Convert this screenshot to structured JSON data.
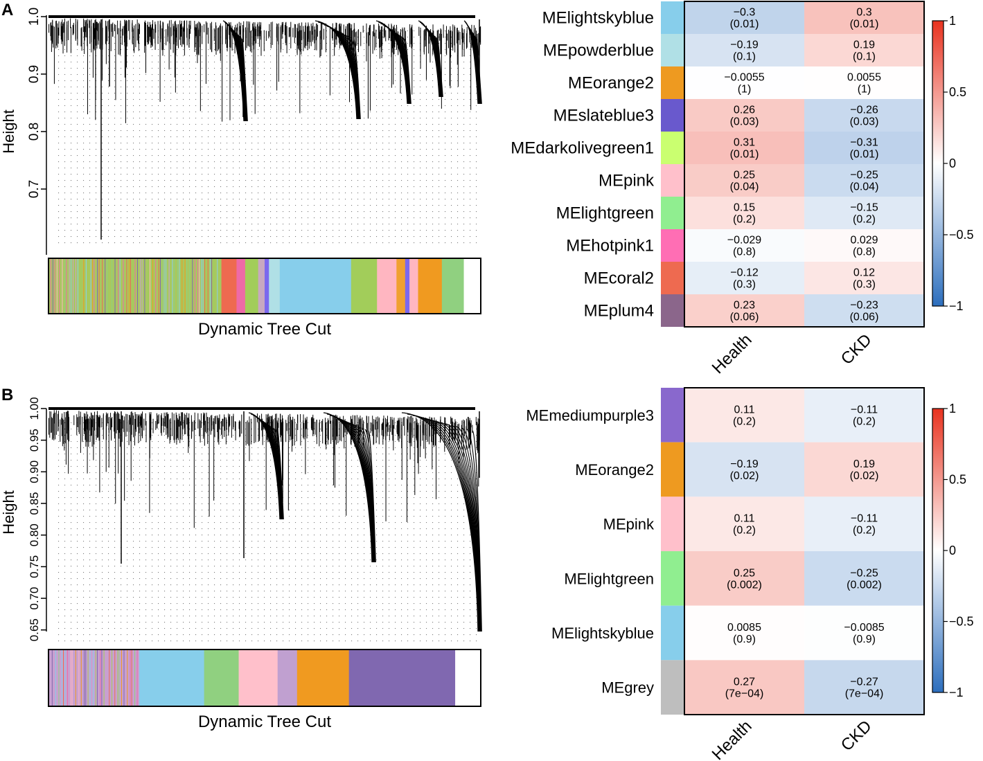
{
  "panels": {
    "A": {
      "label": "A"
    },
    "B": {
      "label": "B"
    }
  },
  "chart_data": [
    {
      "id": "A-dendrogram",
      "type": "dendrogram",
      "ylabel": "Height",
      "yticks": [
        "0.7",
        "0.8",
        "0.9",
        "1.0"
      ],
      "ylim": [
        0.6,
        1.0
      ],
      "colorbar_label": "Dynamic Tree Cut",
      "module_colors": [
        [
          "#a8c860",
          0.4
        ],
        [
          "#ee6a50",
          0.035
        ],
        [
          "#ee6aa7",
          0.02
        ],
        [
          "#a2cd5a",
          0.03
        ],
        [
          "#c8a8c0",
          0.015
        ],
        [
          "#7b68ee",
          0.01
        ],
        [
          "#b0e0e6",
          0.025
        ],
        [
          "#87ceeb",
          0.165
        ],
        [
          "#a2cd5a",
          0.06
        ],
        [
          "#ffb6c1",
          0.045
        ],
        [
          "#f0a030",
          0.02
        ],
        [
          "#7b68ee",
          0.01
        ],
        [
          "#ffb6c1",
          0.02
        ],
        [
          "#f09a20",
          0.055
        ],
        [
          "#90d080",
          0.05
        ]
      ]
    },
    {
      "id": "A-heatmap",
      "type": "heatmap",
      "columns": [
        "Health",
        "CKD"
      ],
      "rows": [
        {
          "name": "MElightskyblue",
          "color": "#87ceeb",
          "values": [
            -0.3,
            0.3
          ],
          "labels": [
            "−0.3",
            "0.3"
          ],
          "pvals": [
            "(0.01)",
            "(0.01)"
          ]
        },
        {
          "name": "MEpowderblue",
          "color": "#b0e0e6",
          "values": [
            -0.19,
            0.19
          ],
          "labels": [
            "−0.19",
            "0.19"
          ],
          "pvals": [
            "(0.1)",
            "(0.1)"
          ]
        },
        {
          "name": "MEorange2",
          "color": "#ee9a20",
          "values": [
            -0.0055,
            0.0055
          ],
          "labels": [
            "−0.0055",
            "0.0055"
          ],
          "pvals": [
            "(1)",
            "(1)"
          ]
        },
        {
          "name": "MEslateblue3",
          "color": "#6959cd",
          "values": [
            0.26,
            -0.26
          ],
          "labels": [
            "0.26",
            "−0.26"
          ],
          "pvals": [
            "(0.03)",
            "(0.03)"
          ]
        },
        {
          "name": "MEdarkolivegreen1",
          "color": "#caff70",
          "values": [
            0.31,
            -0.31
          ],
          "labels": [
            "0.31",
            "−0.31"
          ],
          "pvals": [
            "(0.01)",
            "(0.01)"
          ]
        },
        {
          "name": "MEpink",
          "color": "#ffc0cb",
          "values": [
            0.25,
            -0.25
          ],
          "labels": [
            "0.25",
            "−0.25"
          ],
          "pvals": [
            "(0.04)",
            "(0.04)"
          ]
        },
        {
          "name": "MElightgreen",
          "color": "#90ee90",
          "values": [
            0.15,
            -0.15
          ],
          "labels": [
            "0.15",
            "−0.15"
          ],
          "pvals": [
            "(0.2)",
            "(0.2)"
          ]
        },
        {
          "name": "MEhotpink1",
          "color": "#ff6eb4",
          "values": [
            -0.029,
            0.029
          ],
          "labels": [
            "−0.029",
            "0.029"
          ],
          "pvals": [
            "(0.8)",
            "(0.8)"
          ]
        },
        {
          "name": "MEcoral2",
          "color": "#ee6a50",
          "values": [
            -0.12,
            0.12
          ],
          "labels": [
            "−0.12",
            "0.12"
          ],
          "pvals": [
            "(0.3)",
            "(0.3)"
          ]
        },
        {
          "name": "MEplum4",
          "color": "#8b668b",
          "values": [
            0.23,
            -0.23
          ],
          "labels": [
            "0.23",
            "−0.23"
          ],
          "pvals": [
            "(0.06)",
            "(0.06)"
          ]
        }
      ],
      "legend": {
        "ticks": [
          "1",
          "0.5",
          "0",
          "−0.5",
          "−1"
        ],
        "range": [
          -1,
          1
        ],
        "low": "#2c6ebd",
        "mid": "#ffffff",
        "high": "#e8321f"
      }
    },
    {
      "id": "B-dendrogram",
      "type": "dendrogram",
      "ylabel": "Height",
      "yticks": [
        "0.65",
        "0.70",
        "0.75",
        "0.80",
        "0.85",
        "0.90",
        "0.95",
        "1.00"
      ],
      "ylim": [
        0.63,
        1.0
      ],
      "colorbar_label": "Dynamic Tree Cut",
      "module_colors": [
        [
          "#c8a0d0",
          0.21
        ],
        [
          "#87ceeb",
          0.15
        ],
        [
          "#90d080",
          0.08
        ],
        [
          "#ffc0cb",
          0.09
        ],
        [
          "#c0a0d0",
          0.045
        ],
        [
          "#f09a20",
          0.12
        ],
        [
          "#8068b0",
          0.245
        ]
      ]
    },
    {
      "id": "B-heatmap",
      "type": "heatmap",
      "columns": [
        "Health",
        "CKD"
      ],
      "rows": [
        {
          "name": "MEmediumpurple3",
          "color": "#8968cd",
          "values": [
            0.11,
            -0.11
          ],
          "labels": [
            "0.11",
            "−0.11"
          ],
          "pvals": [
            "(0.2)",
            "(0.2)"
          ]
        },
        {
          "name": "MEorange2",
          "color": "#ee9a20",
          "values": [
            -0.19,
            0.19
          ],
          "labels": [
            "−0.19",
            "0.19"
          ],
          "pvals": [
            "(0.02)",
            "(0.02)"
          ]
        },
        {
          "name": "MEpink",
          "color": "#ffc0cb",
          "values": [
            0.11,
            -0.11
          ],
          "labels": [
            "0.11",
            "−0.11"
          ],
          "pvals": [
            "(0.2)",
            "(0.2)"
          ]
        },
        {
          "name": "MElightgreen",
          "color": "#90ee90",
          "values": [
            0.25,
            -0.25
          ],
          "labels": [
            "0.25",
            "−0.25"
          ],
          "pvals": [
            "(0.002)",
            "(0.002)"
          ]
        },
        {
          "name": "MElightskyblue",
          "color": "#87ceeb",
          "values": [
            0.0085,
            -0.0085
          ],
          "labels": [
            "0.0085",
            "−0.0085"
          ],
          "pvals": [
            "(0.9)",
            "(0.9)"
          ]
        },
        {
          "name": "MEgrey",
          "color": "#bebebe",
          "values": [
            0.27,
            -0.27
          ],
          "labels": [
            "0.27",
            "−0.27"
          ],
          "pvals": [
            "(7e−04)",
            "(7e−04)"
          ]
        }
      ],
      "legend": {
        "ticks": [
          "1",
          "0.5",
          "0",
          "−0.5",
          "−1"
        ],
        "range": [
          -1,
          1
        ],
        "low": "#2c6ebd",
        "mid": "#ffffff",
        "high": "#e8321f"
      }
    }
  ]
}
